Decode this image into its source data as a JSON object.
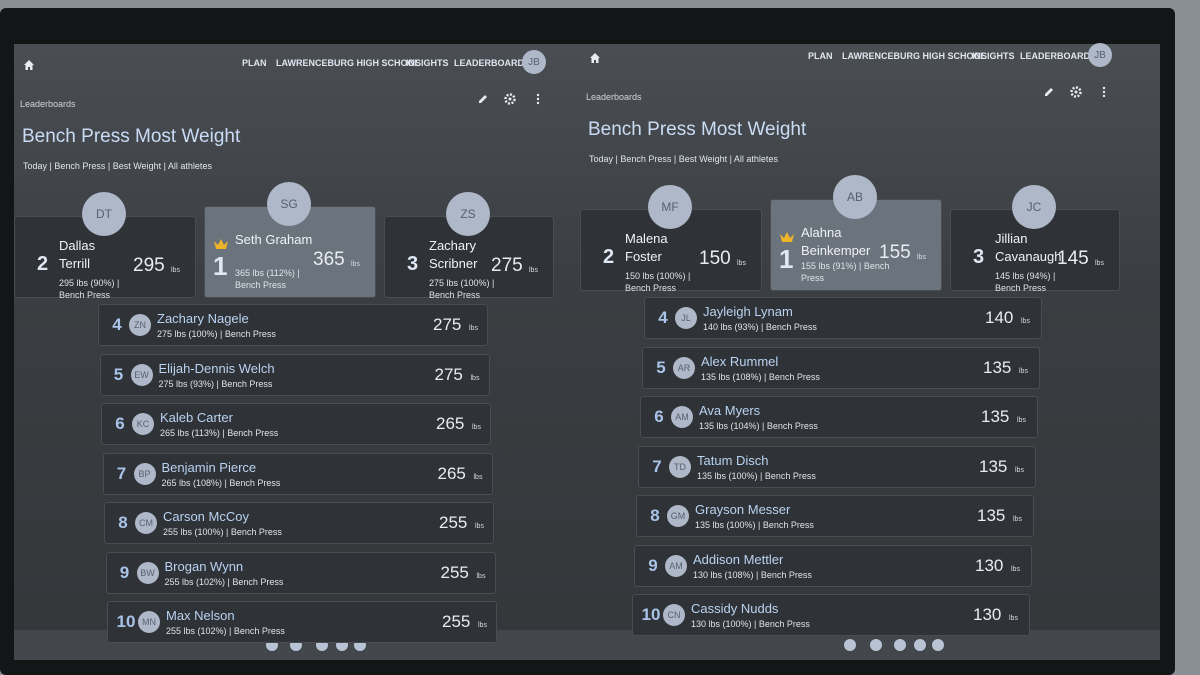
{
  "panels": [
    {
      "nav": [
        "PLAN",
        "LAWRENCEBURG HIGH SCHOOL",
        "INSIGHTS",
        "LEADERBOARD"
      ],
      "user": "JB",
      "breadcrumb": "Leaderboards",
      "title": "Bench Press Most Weight",
      "filters": "Today | Bench Press | Best Weight | All athletes",
      "unit": "lbs",
      "podium": [
        {
          "rank": 2,
          "initials": "DT",
          "name": "Dallas Terrill",
          "detail": "295 lbs (90%) | Bench Press",
          "value": 295
        },
        {
          "rank": 1,
          "initials": "SG",
          "name": "Seth Graham",
          "detail": "365 lbs (112%) | Bench Press",
          "value": 365
        },
        {
          "rank": 3,
          "initials": "ZS",
          "name": "Zachary Scribner",
          "detail": "275 lbs (100%) | Bench Press",
          "value": 275
        }
      ],
      "rows": [
        {
          "rank": 4,
          "initials": "ZN",
          "name": "Zachary Nagele",
          "detail": "275 lbs (100%) | Bench Press",
          "value": 275
        },
        {
          "rank": 5,
          "initials": "EW",
          "name": "Elijah-Dennis Welch",
          "detail": "275 lbs (93%) | Bench Press",
          "value": 275
        },
        {
          "rank": 6,
          "initials": "KC",
          "name": "Kaleb Carter",
          "detail": "265 lbs (113%) | Bench Press",
          "value": 265
        },
        {
          "rank": 7,
          "initials": "BP",
          "name": "Benjamin Pierce",
          "detail": "265 lbs (108%) | Bench Press",
          "value": 265
        },
        {
          "rank": 8,
          "initials": "CM",
          "name": "Carson McCoy",
          "detail": "255 lbs (100%) | Bench Press",
          "value": 255
        },
        {
          "rank": 9,
          "initials": "BW",
          "name": "Brogan Wynn",
          "detail": "255 lbs (102%) | Bench Press",
          "value": 255
        },
        {
          "rank": 10,
          "initials": "MN",
          "name": "Max Nelson",
          "detail": "255 lbs (102%) | Bench Press",
          "value": 255
        }
      ]
    },
    {
      "nav": [
        "PLAN",
        "LAWRENCEBURG HIGH SCHOOL",
        "INSIGHTS",
        "LEADERBOARD"
      ],
      "user": "JB",
      "breadcrumb": "Leaderboards",
      "title": "Bench Press Most Weight",
      "filters": "Today | Bench Press | Best Weight | All athletes",
      "unit": "lbs",
      "podium": [
        {
          "rank": 2,
          "initials": "MF",
          "name": "Malena Foster",
          "detail": "150 lbs (100%) | Bench Press",
          "value": 150
        },
        {
          "rank": 1,
          "initials": "AB",
          "name": "Alahna Beinkemper",
          "detail": "155 lbs (91%) | Bench Press",
          "value": 155
        },
        {
          "rank": 3,
          "initials": "JC",
          "name": "Jillian Cavanaugh",
          "detail": "145 lbs (94%) | Bench Press",
          "value": 145
        }
      ],
      "rows": [
        {
          "rank": 4,
          "initials": "JL",
          "name": "Jayleigh Lynam",
          "detail": "140 lbs (93%) | Bench Press",
          "value": 140
        },
        {
          "rank": 5,
          "initials": "AR",
          "name": "Alex Rummel",
          "detail": "135 lbs (108%) | Bench Press",
          "value": 135
        },
        {
          "rank": 6,
          "initials": "AM",
          "name": "Ava Myers",
          "detail": "135 lbs (104%) | Bench Press",
          "value": 135
        },
        {
          "rank": 7,
          "initials": "TD",
          "name": "Tatum Disch",
          "detail": "135 lbs (100%) | Bench Press",
          "value": 135
        },
        {
          "rank": 8,
          "initials": "GM",
          "name": "Grayson Messer",
          "detail": "135 lbs (100%) | Bench Press",
          "value": 135
        },
        {
          "rank": 9,
          "initials": "AM",
          "name": "Addison Mettler",
          "detail": "130 lbs (108%) | Bench Press",
          "value": 130
        },
        {
          "rank": 10,
          "initials": "CN",
          "name": "Cassidy Nudds",
          "detail": "130 lbs (100%) | Bench Press",
          "value": 130
        }
      ]
    }
  ]
}
